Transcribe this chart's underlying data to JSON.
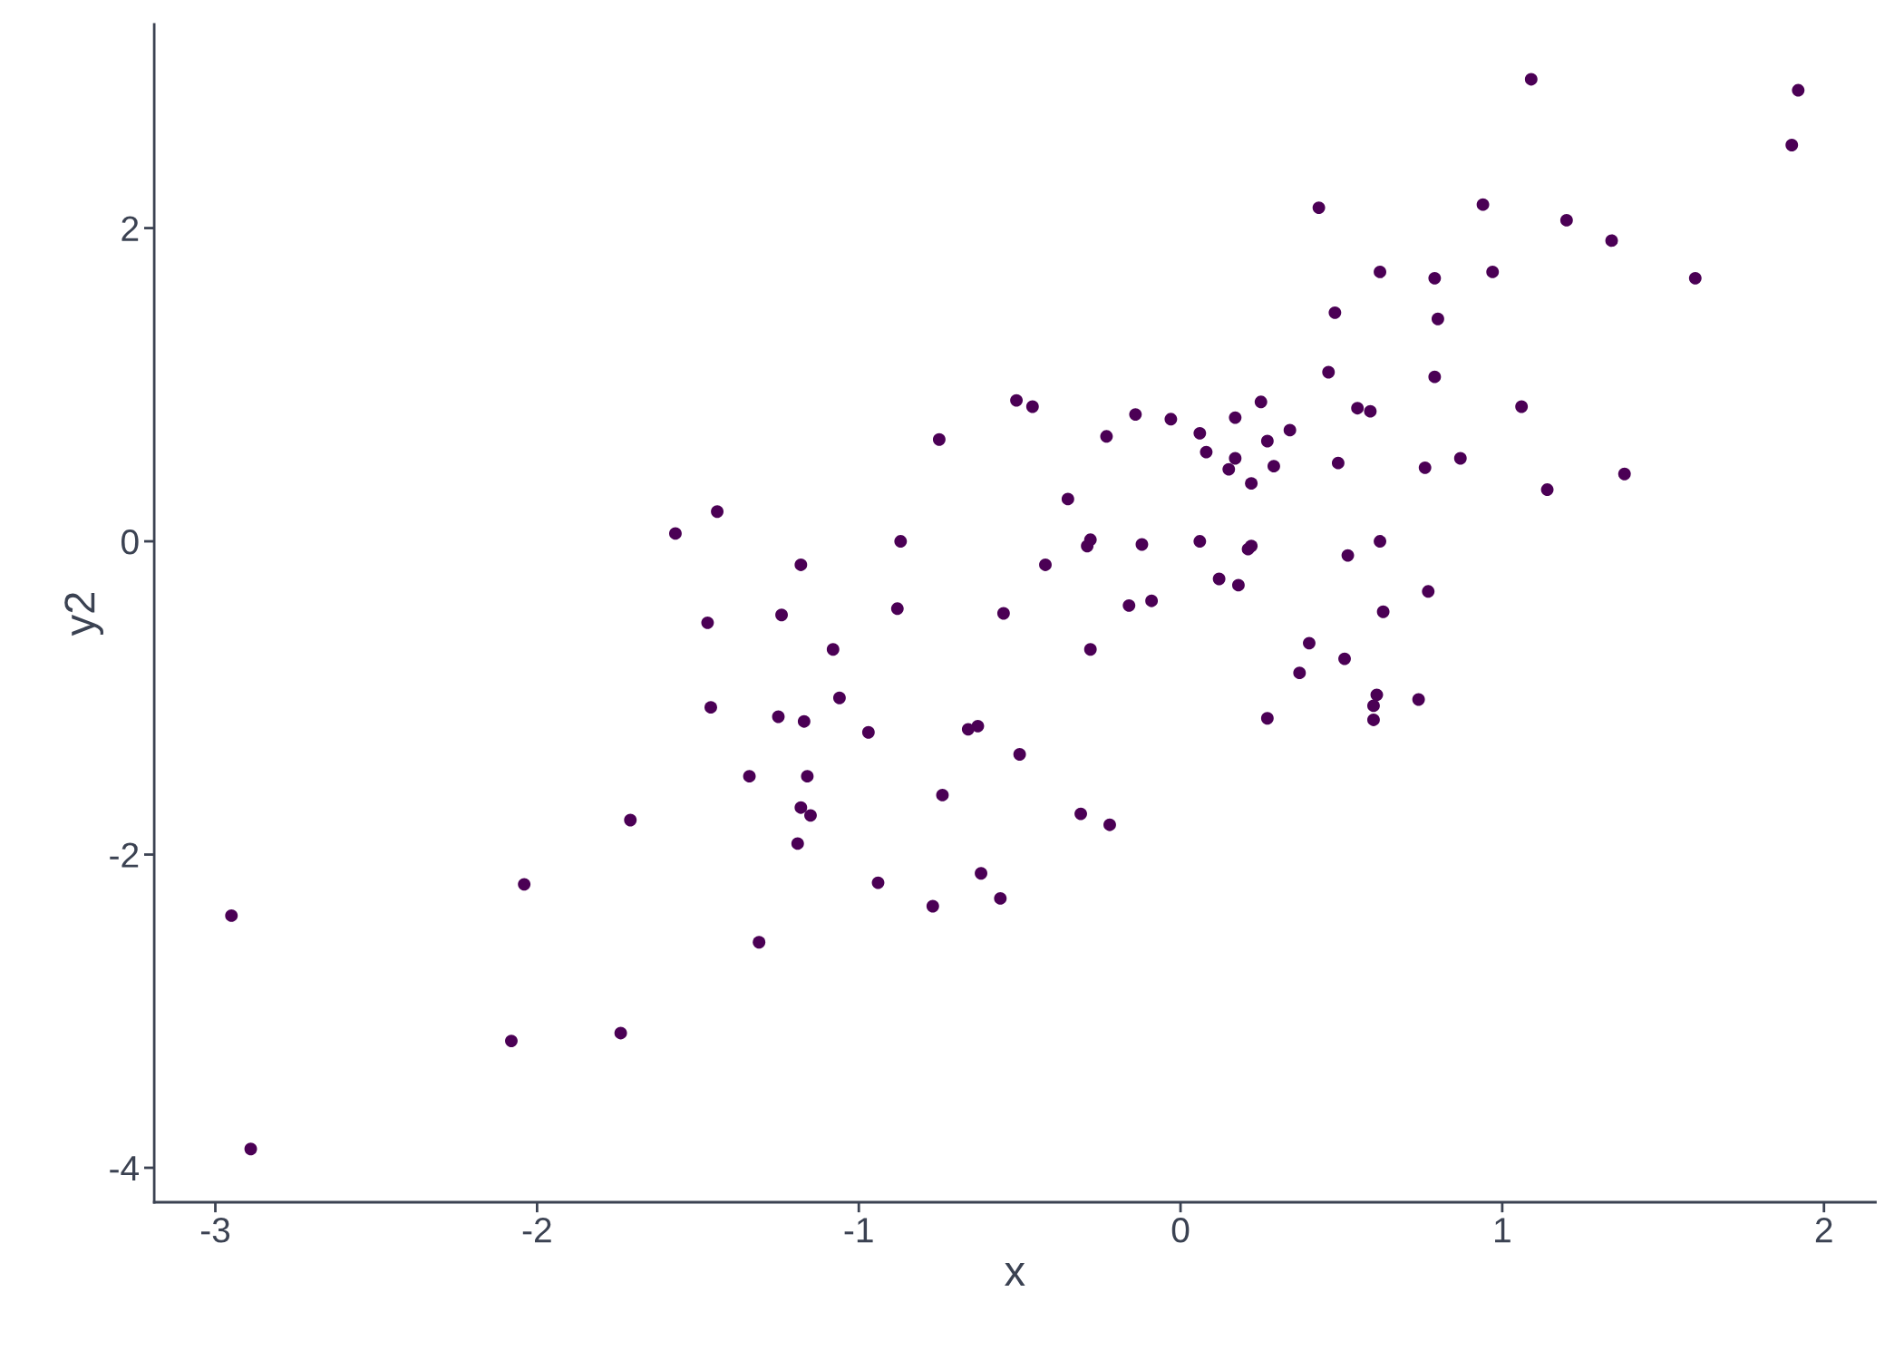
{
  "chart_data": {
    "type": "scatter",
    "xlabel": "x",
    "ylabel": "y2",
    "xlim": [
      -3.19,
      2.16
    ],
    "ylim": [
      -4.22,
      3.3
    ],
    "xticks": [
      {
        "value": -3,
        "label": "-3"
      },
      {
        "value": -2,
        "label": "-2"
      },
      {
        "value": -1,
        "label": "-1"
      },
      0,
      1,
      2
    ],
    "yticks": [
      {
        "value": -4,
        "label": "-4"
      },
      {
        "value": -2,
        "label": "-2"
      },
      0,
      2
    ],
    "grid": false,
    "legend": false,
    "marker": "circle",
    "series": [
      {
        "color": "#4b0055",
        "x": [
          1.09,
          1.92,
          1.9,
          0.43,
          0.94,
          1.2,
          1.34,
          0.62,
          0.97,
          0.79,
          1.6,
          0.48,
          0.8,
          0.46,
          0.79,
          -0.51,
          -0.46,
          0.25,
          0.55,
          0.59,
          1.06,
          -0.14,
          0.17,
          -0.03,
          0.06,
          0.34,
          -0.75,
          -0.23,
          0.27,
          0.08,
          0.17,
          0.49,
          0.87,
          0.29,
          0.15,
          0.76,
          1.38,
          0.22,
          1.14,
          -0.35,
          -1.44,
          -1.57,
          -0.87,
          -0.28,
          0.06,
          0.62,
          -0.29,
          -0.12,
          0.22,
          0.21,
          0.52,
          -1.18,
          -0.42,
          0.12,
          0.18,
          0.77,
          -0.09,
          -0.16,
          -0.88,
          -1.47,
          -1.24,
          -0.55,
          0.63,
          -1.08,
          -0.28,
          0.4,
          0.51,
          0.37,
          -1.06,
          0.74,
          0.61,
          0.6,
          -1.46,
          -1.25,
          -1.17,
          0.27,
          0.6,
          -0.97,
          -0.63,
          -0.66,
          -0.5,
          -1.34,
          -1.16,
          -0.74,
          -1.18,
          -0.31,
          -1.15,
          -1.71,
          -0.22,
          -1.19,
          -0.62,
          -0.94,
          -2.04,
          -0.56,
          -0.77,
          -2.95,
          -1.31,
          -1.74,
          -2.08,
          -2.89
        ],
        "values": [
          2.95,
          2.88,
          2.53,
          2.13,
          2.15,
          2.05,
          1.92,
          1.72,
          1.72,
          1.68,
          1.68,
          1.46,
          1.42,
          1.08,
          1.05,
          0.9,
          0.86,
          0.89,
          0.85,
          0.83,
          0.86,
          0.81,
          0.79,
          0.78,
          0.69,
          0.71,
          0.65,
          0.67,
          0.64,
          0.57,
          0.53,
          0.5,
          0.53,
          0.48,
          0.46,
          0.47,
          0.43,
          0.37,
          0.33,
          0.27,
          0.19,
          0.05,
          0.0,
          0.01,
          0.0,
          0.0,
          -0.03,
          -0.02,
          -0.03,
          -0.05,
          -0.09,
          -0.15,
          -0.15,
          -0.24,
          -0.28,
          -0.32,
          -0.38,
          -0.41,
          -0.43,
          -0.52,
          -0.47,
          -0.46,
          -0.45,
          -0.69,
          -0.69,
          -0.65,
          -0.75,
          -0.84,
          -1.0,
          -1.01,
          -0.98,
          -1.05,
          -1.06,
          -1.12,
          -1.15,
          -1.13,
          -1.14,
          -1.22,
          -1.18,
          -1.2,
          -1.36,
          -1.5,
          -1.5,
          -1.62,
          -1.7,
          -1.74,
          -1.75,
          -1.78,
          -1.81,
          -1.93,
          -2.12,
          -2.18,
          -2.19,
          -2.28,
          -2.33,
          -2.39,
          -2.56,
          -3.14,
          -3.19,
          -3.88
        ]
      }
    ]
  }
}
